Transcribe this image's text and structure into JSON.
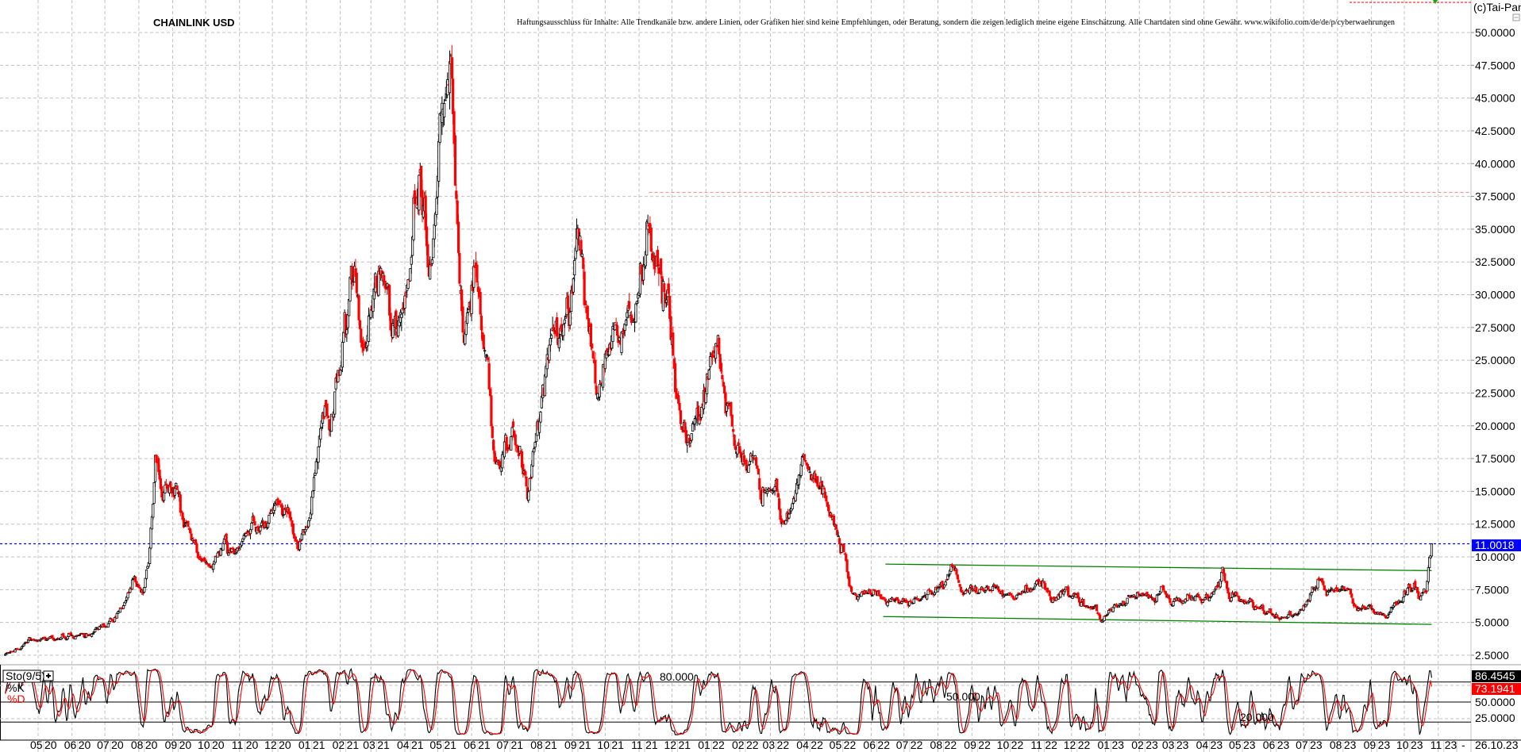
{
  "header": {
    "title": "CHAINLINK USD",
    "disclaimer": "Haftungsausschluss für Inhalte: Alle Trendkanäle bzw. andere Linien, oder Grafiken hier sind keine Empfehlungen, oder Beratung, sondern die zeigen lediglich meine eigene Einschätzung. Alle Chartdaten sind ohne Gewähr.  www.wikifolio.com/de/de/p/cyberwaehrungen",
    "copyright": "(c)Tai-Pan"
  },
  "footer": {
    "dash": "-",
    "last_date": "26.10.23"
  },
  "colors": {
    "bull": "#000000",
    "bear": "#ff0000",
    "current_price_line": "#0000ff",
    "trend_channel": "#008000",
    "resistance": "#ff8080",
    "grid": "#c0c0c0"
  },
  "chart_data": [
    {
      "type": "candlestick",
      "title": "CHAINLINK USD",
      "ylim": [
        2.5,
        50
      ],
      "yticks": [
        "50.0000",
        "47.5000",
        "45.0000",
        "42.5000",
        "40.0000",
        "37.5000",
        "35.0000",
        "32.5000",
        "30.0000",
        "27.5000",
        "25.0000",
        "22.5000",
        "20.0000",
        "17.5000",
        "15.0000",
        "12.5000",
        "10.0000",
        "7.5000",
        "5.0000",
        "2.5000"
      ],
      "xticks": [
        "05 20",
        "06 20",
        "07 20",
        "08 20",
        "09 20",
        "10 20",
        "11 20",
        "12 20",
        "01 21",
        "02 21",
        "03 21",
        "04 21",
        "05 21",
        "06 21",
        "07 21",
        "08 21",
        "09 21",
        "10 21",
        "11 21",
        "12 21",
        "01 22",
        "02 22",
        "03 22",
        "04 22",
        "05 22",
        "06 22",
        "07 22",
        "08 22",
        "09 22",
        "10 22",
        "11 22",
        "12 22",
        "01 23",
        "02 23",
        "03 23",
        "04 23",
        "05 23",
        "06 23",
        "07 23",
        "08 23",
        "09 23",
        "10 23",
        "11 23"
      ],
      "grid": true,
      "last_price": 11.0018,
      "last_price_label": "11.0018",
      "resistance": {
        "price": 37.8,
        "from": "2021-11-10"
      },
      "trend_channel": {
        "upper": [
          [
            "2022-06-14",
            9.45
          ],
          [
            "2023-10-26",
            8.95
          ]
        ],
        "lower": [
          [
            "2022-06-12",
            5.45
          ],
          [
            "2023-10-26",
            4.85
          ]
        ]
      },
      "price_path": [
        [
          "2020-04-01",
          2.5
        ],
        [
          "2020-04-20",
          3.6
        ],
        [
          "2020-05-15",
          3.8
        ],
        [
          "2020-06-15",
          4.1
        ],
        [
          "2020-07-05",
          4.8
        ],
        [
          "2020-07-20",
          6.5
        ],
        [
          "2020-07-28",
          8.3
        ],
        [
          "2020-08-05",
          7.5
        ],
        [
          "2020-08-10",
          9.8
        ],
        [
          "2020-08-16",
          18.5
        ],
        [
          "2020-08-22",
          14.5
        ],
        [
          "2020-09-05",
          15.5
        ],
        [
          "2020-09-10",
          12.5
        ],
        [
          "2020-09-25",
          10.0
        ],
        [
          "2020-10-05",
          9.0
        ],
        [
          "2020-10-15",
          11.0
        ],
        [
          "2020-10-28",
          10.0
        ],
        [
          "2020-11-10",
          12.0
        ],
        [
          "2020-11-25",
          12.5
        ],
        [
          "2020-12-05",
          14.0
        ],
        [
          "2020-12-15",
          13.0
        ],
        [
          "2020-12-25",
          11.0
        ],
        [
          "2021-01-05",
          14.0
        ],
        [
          "2021-01-15",
          20.0
        ],
        [
          "2021-01-25",
          21.0
        ],
        [
          "2021-02-05",
          27.0
        ],
        [
          "2021-02-15",
          33.0
        ],
        [
          "2021-02-22",
          25.0
        ],
        [
          "2021-03-05",
          30.0
        ],
        [
          "2021-03-15",
          29.0
        ],
        [
          "2021-03-25",
          26.0
        ],
        [
          "2021-04-05",
          30.0
        ],
        [
          "2021-04-15",
          40.0
        ],
        [
          "2021-04-25",
          31.0
        ],
        [
          "2021-05-05",
          44.0
        ],
        [
          "2021-05-10",
          50.0
        ],
        [
          "2021-05-15",
          44.0
        ],
        [
          "2021-05-20",
          32.0
        ],
        [
          "2021-05-25",
          27.0
        ],
        [
          "2021-06-05",
          31.0
        ],
        [
          "2021-06-15",
          25.0
        ],
        [
          "2021-06-22",
          17.0
        ],
        [
          "2021-07-05",
          19.0
        ],
        [
          "2021-07-15",
          17.5
        ],
        [
          "2021-07-22",
          15.0
        ],
        [
          "2021-08-05",
          22.0
        ],
        [
          "2021-08-15",
          26.0
        ],
        [
          "2021-08-25",
          27.0
        ],
        [
          "2021-09-05",
          33.0
        ],
        [
          "2021-09-15",
          28.0
        ],
        [
          "2021-09-25",
          23.5
        ],
        [
          "2021-10-05",
          27.0
        ],
        [
          "2021-10-20",
          28.0
        ],
        [
          "2021-10-30",
          30.0
        ],
        [
          "2021-11-10",
          36.5
        ],
        [
          "2021-11-18",
          31.0
        ],
        [
          "2021-11-28",
          29.0
        ],
        [
          "2021-12-05",
          23.0
        ],
        [
          "2021-12-15",
          19.0
        ],
        [
          "2021-12-25",
          21.0
        ],
        [
          "2022-01-05",
          24.0
        ],
        [
          "2022-01-12",
          27.0
        ],
        [
          "2022-01-20",
          22.0
        ],
        [
          "2022-01-27",
          19.0
        ],
        [
          "2022-02-10",
          18.0
        ],
        [
          "2022-02-20",
          15.0
        ],
        [
          "2022-03-01",
          16.0
        ],
        [
          "2022-03-10",
          13.5
        ],
        [
          "2022-03-20",
          14.0
        ],
        [
          "2022-03-31",
          17.5
        ],
        [
          "2022-04-10",
          15.5
        ],
        [
          "2022-04-20",
          14.0
        ],
        [
          "2022-04-30",
          12.0
        ],
        [
          "2022-05-08",
          10.0
        ],
        [
          "2022-05-12",
          7.5
        ],
        [
          "2022-05-25",
          7.0
        ],
        [
          "2022-06-05",
          7.5
        ],
        [
          "2022-06-15",
          6.5
        ],
        [
          "2022-06-25",
          7.0
        ],
        [
          "2022-07-05",
          6.5
        ],
        [
          "2022-07-20",
          7.0
        ],
        [
          "2022-08-05",
          7.5
        ],
        [
          "2022-08-15",
          8.8
        ],
        [
          "2022-08-25",
          7.2
        ],
        [
          "2022-09-10",
          7.6
        ],
        [
          "2022-09-25",
          7.4
        ],
        [
          "2022-10-10",
          7.2
        ],
        [
          "2022-10-25",
          7.5
        ],
        [
          "2022-11-05",
          8.5
        ],
        [
          "2022-11-12",
          6.5
        ],
        [
          "2022-11-25",
          7.2
        ],
        [
          "2022-12-10",
          6.5
        ],
        [
          "2022-12-28",
          5.6
        ],
        [
          "2023-01-15",
          6.5
        ],
        [
          "2023-02-05",
          7.0
        ],
        [
          "2023-02-20",
          7.2
        ],
        [
          "2023-03-10",
          6.5
        ],
        [
          "2023-03-25",
          7.0
        ],
        [
          "2023-04-10",
          7.3
        ],
        [
          "2023-04-18",
          8.5
        ],
        [
          "2023-04-25",
          7.0
        ],
        [
          "2023-05-10",
          6.5
        ],
        [
          "2023-05-25",
          6.3
        ],
        [
          "2023-06-10",
          5.3
        ],
        [
          "2023-06-20",
          5.6
        ],
        [
          "2023-07-05",
          6.5
        ],
        [
          "2023-07-14",
          8.2
        ],
        [
          "2023-07-25",
          7.5
        ],
        [
          "2023-08-10",
          7.6
        ],
        [
          "2023-08-18",
          6.3
        ],
        [
          "2023-09-01",
          6.0
        ],
        [
          "2023-09-15",
          5.9
        ],
        [
          "2023-09-25",
          6.5
        ],
        [
          "2023-10-05",
          7.5
        ],
        [
          "2023-10-15",
          7.4
        ],
        [
          "2023-10-21",
          7.6
        ],
        [
          "2023-10-24",
          10.0
        ],
        [
          "2023-10-26",
          11.0
        ]
      ]
    },
    {
      "type": "line",
      "indicator": "Sto(9/5)",
      "series": [
        {
          "name": "%K",
          "color": "#000000",
          "last": 86.4545,
          "last_label": "86.4545"
        },
        {
          "name": "%D",
          "color": "#ff0000",
          "last": 73.1941,
          "last_label": "73.1941"
        }
      ],
      "ylim": [
        0,
        100
      ],
      "levels": [
        {
          "value": 80,
          "label": "80.000"
        },
        {
          "value": 50,
          "label": "50.000"
        },
        {
          "value": 20,
          "label": "20.000"
        }
      ],
      "yticks": [
        "50.0000",
        "25.0000"
      ]
    }
  ]
}
